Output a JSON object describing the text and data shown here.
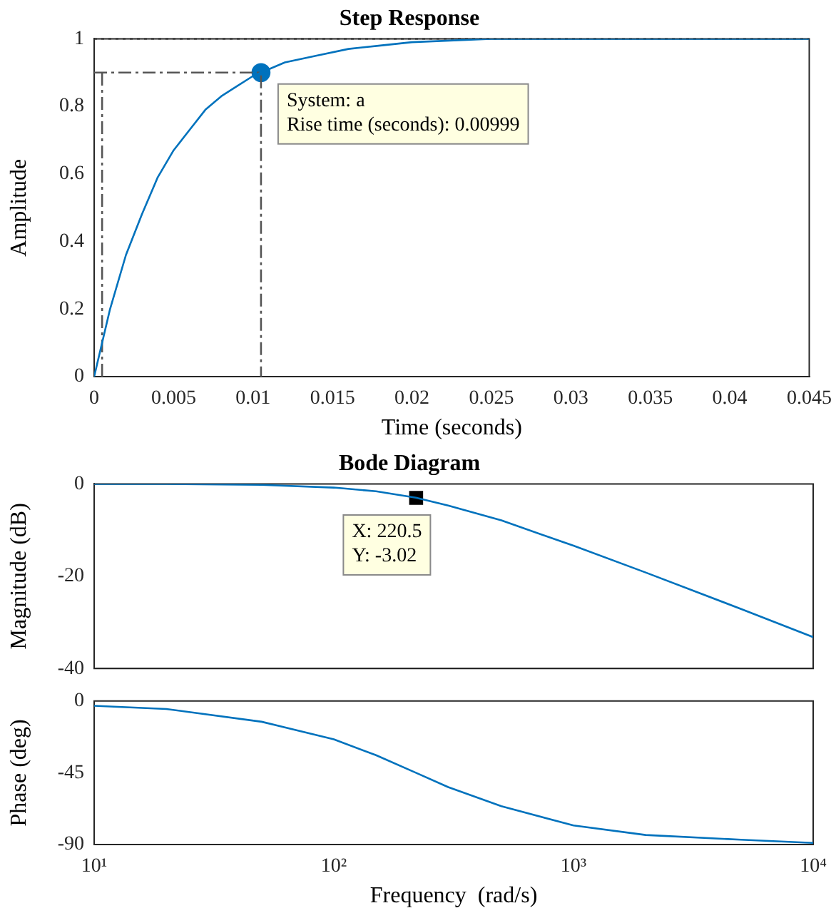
{
  "chart_data": [
    {
      "type": "line",
      "title": "Step Response",
      "xlabel": "Time (seconds)",
      "ylabel": "Amplitude",
      "xlim": [
        0,
        0.045
      ],
      "ylim": [
        0,
        1
      ],
      "xticks": [
        0,
        0.005,
        0.01,
        0.015,
        0.02,
        0.025,
        0.03,
        0.035,
        0.04,
        0.045
      ],
      "yticks": [
        0,
        0.2,
        0.4,
        0.6,
        0.8,
        1
      ],
      "x": [
        0,
        0.001,
        0.002,
        0.003,
        0.004,
        0.005,
        0.006,
        0.007,
        0.008,
        0.009,
        0.01,
        0.012,
        0.014,
        0.016,
        0.018,
        0.02,
        0.025,
        0.03,
        0.035,
        0.045
      ],
      "series": [
        {
          "color": "#0072bd",
          "values": [
            0,
            0.2,
            0.36,
            0.48,
            0.59,
            0.67,
            0.73,
            0.79,
            0.83,
            0.86,
            0.89,
            0.93,
            0.95,
            0.97,
            0.98,
            0.99,
            1,
            1,
            1,
            1
          ]
        },
        {
          "type": "line",
          "color": "#555555",
          "line_style": "dashed",
          "x": [
            0,
            0.0105,
            0.0105
          ],
          "values": [
            0.9,
            0.9,
            0
          ]
        },
        {
          "type": "line",
          "color": "#555555",
          "line_style": "dashed",
          "x": [
            0.0005,
            0.0005
          ],
          "values": [
            0,
            0.9
          ]
        },
        {
          "type": "scatter",
          "color": "#0072bd",
          "marker": "circle",
          "x": [
            0.0105
          ],
          "values": [
            0.9
          ]
        }
      ],
      "ref_lines": [
        {
          "axis": "y",
          "value": 1,
          "color": "#333333",
          "line_style": "dotted"
        }
      ],
      "annotations": [
        {
          "text": "System: a\nRise time (seconds): 0.00999",
          "x": 0.0105,
          "y": 0.9
        }
      ]
    },
    {
      "type": "line",
      "title": "Bode Diagram",
      "ylabel": "Magnitude (dB)",
      "log": "x",
      "xlim": [
        10,
        10000
      ],
      "ylim": [
        -40,
        0
      ],
      "xticks": [
        {
          "value": 10,
          "label": null
        },
        {
          "value": 100,
          "label": null
        },
        {
          "value": 1000,
          "label": null
        },
        {
          "value": 10000,
          "label": null
        }
      ],
      "yticks": [
        -40,
        -20,
        0
      ],
      "tick_labels": "y",
      "x": [
        10,
        20,
        50,
        100,
        150,
        220,
        300,
        500,
        1000,
        2000,
        5000,
        10000
      ],
      "series": [
        {
          "color": "#0072bd",
          "values": [
            0,
            0,
            -0.2,
            -0.8,
            -1.6,
            -3,
            -4.7,
            -7.9,
            -13.4,
            -19.2,
            -27.1,
            -33.2
          ]
        },
        {
          "type": "scatter",
          "color": "#000000",
          "marker": "square",
          "x": [
            220.5
          ],
          "values": [
            -3.02
          ]
        }
      ],
      "annotations": [
        {
          "text": "X: 220.5\nY: -3.02",
          "x": 220.5,
          "y": -3.02
        }
      ]
    },
    {
      "type": "line",
      "xlabel": "Frequency  (rad/s)",
      "ylabel": "Phase (deg)",
      "log": "x",
      "xlim": [
        10,
        10000
      ],
      "ylim": [
        -90,
        0
      ],
      "xticks": [
        {
          "value": 10,
          "label": "10¹"
        },
        {
          "value": 100,
          "label": "10²"
        },
        {
          "value": 1000,
          "label": "10³"
        },
        {
          "value": 10000,
          "label": "10⁴"
        }
      ],
      "yticks": [
        -90,
        -45,
        0
      ],
      "x": [
        10,
        20,
        50,
        100,
        150,
        220,
        300,
        500,
        1000,
        2000,
        5000,
        10000
      ],
      "series": [
        {
          "color": "#0072bd",
          "values": [
            -3,
            -5,
            -13,
            -24,
            -34,
            -45,
            -54,
            -66,
            -78,
            -84,
            -87,
            -89
          ]
        }
      ]
    }
  ]
}
